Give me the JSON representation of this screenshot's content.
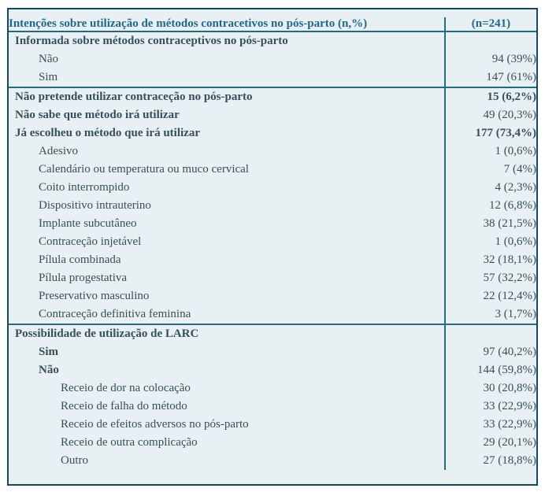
{
  "table": {
    "title": "Intenções sobre utilização de métodos contracetivos no pós-parto (n,%)",
    "sample_size": "(n=241)",
    "colors": {
      "page_background": "#ffffff",
      "table_background": "#e9f0f3",
      "outer_border": "#16495e",
      "rule_lines": "#236c80",
      "title_text": "#1c6a88",
      "body_text": "#33505c"
    },
    "rows": [
      {
        "label": "Informada sobre métodos contraceptivos no pós-parto",
        "value": "",
        "indent": 0,
        "bold": true,
        "value_bold": false,
        "rule_above": false
      },
      {
        "label": "Não",
        "value": "94 (39%)",
        "indent": 1,
        "bold": false,
        "value_bold": false,
        "rule_above": false
      },
      {
        "label": "Sim",
        "value": "147 (61%)",
        "indent": 1,
        "bold": false,
        "value_bold": false,
        "rule_above": false
      },
      {
        "label": "Não pretende utilizar contraceção no pós-parto",
        "value": "15 (6,2%)",
        "indent": 0,
        "bold": true,
        "value_bold": true,
        "rule_above": true
      },
      {
        "label": "Não sabe que método irá utilizar",
        "value": "49 (20,3%)",
        "indent": 0,
        "bold": true,
        "value_bold": false,
        "rule_above": false
      },
      {
        "label": "Já escolheu o método que irá utilizar",
        "value": "177 (73,4%)",
        "indent": 0,
        "bold": true,
        "value_bold": true,
        "rule_above": false
      },
      {
        "label": "Adesivo",
        "value": "1 (0,6%)",
        "indent": 1,
        "bold": false,
        "value_bold": false,
        "rule_above": false
      },
      {
        "label": "Calendário ou temperatura ou muco cervical",
        "value": "7 (4%)",
        "indent": 1,
        "bold": false,
        "value_bold": false,
        "rule_above": false
      },
      {
        "label": "Coito interrompido",
        "value": "4 (2,3%)",
        "indent": 1,
        "bold": false,
        "value_bold": false,
        "rule_above": false
      },
      {
        "label": "Dispositivo intrauterino",
        "value": "12 (6,8%)",
        "indent": 1,
        "bold": false,
        "value_bold": false,
        "rule_above": false
      },
      {
        "label": "Implante subcutâneo",
        "value": "38 (21,5%)",
        "indent": 1,
        "bold": false,
        "value_bold": false,
        "rule_above": false
      },
      {
        "label": "Contraceção injetável",
        "value": "1 (0,6%)",
        "indent": 1,
        "bold": false,
        "value_bold": false,
        "rule_above": false
      },
      {
        "label": "Pílula combinada",
        "value": "32 (18,1%)",
        "indent": 1,
        "bold": false,
        "value_bold": false,
        "rule_above": false
      },
      {
        "label": "Pílula progestativa",
        "value": "57 (32,2%)",
        "indent": 1,
        "bold": false,
        "value_bold": false,
        "rule_above": false
      },
      {
        "label": "Preservativo masculino",
        "value": "22 (12,4%)",
        "indent": 1,
        "bold": false,
        "value_bold": false,
        "rule_above": false
      },
      {
        "label": "Contraceção definitiva feminina",
        "value": "3 (1,7%)",
        "indent": 1,
        "bold": false,
        "value_bold": false,
        "rule_above": false
      },
      {
        "label": "Possibilidade de utilização de LARC",
        "value": "",
        "indent": 0,
        "bold": true,
        "value_bold": false,
        "rule_above": true
      },
      {
        "label": "Sim",
        "value": "97 (40,2%)",
        "indent": 1,
        "bold": true,
        "value_bold": false,
        "rule_above": false
      },
      {
        "label": "Não",
        "value": "144 (59,8%)",
        "indent": 1,
        "bold": true,
        "value_bold": false,
        "rule_above": false
      },
      {
        "label": "Receio de dor na colocação",
        "value": "30 (20,8%)",
        "indent": 2,
        "bold": false,
        "value_bold": false,
        "rule_above": false
      },
      {
        "label": "Receio de falha do método",
        "value": "33 (22,9%)",
        "indent": 2,
        "bold": false,
        "value_bold": false,
        "rule_above": false
      },
      {
        "label": "Receio de efeitos adversos no pós-parto",
        "value": "33 (22,9%)",
        "indent": 2,
        "bold": false,
        "value_bold": false,
        "rule_above": false
      },
      {
        "label": "Receio de outra complicação",
        "value": "29 (20,1%)",
        "indent": 2,
        "bold": false,
        "value_bold": false,
        "rule_above": false
      },
      {
        "label": "Outro",
        "value": "27 (18,8%)",
        "indent": 2,
        "bold": false,
        "value_bold": false,
        "rule_above": false
      }
    ]
  }
}
